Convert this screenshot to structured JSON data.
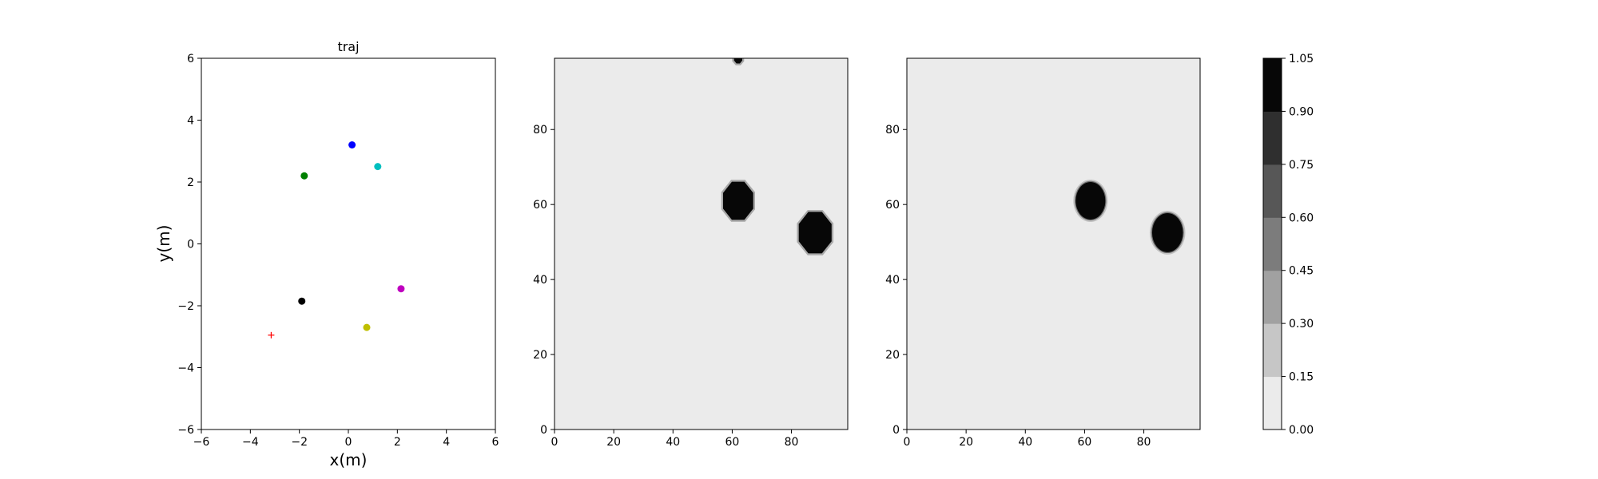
{
  "chart_data": [
    {
      "type": "scatter",
      "title": "traj",
      "xlabel": "x(m)",
      "ylabel": "y(m)",
      "xlim": [
        -6,
        6
      ],
      "ylim": [
        -6,
        6
      ],
      "xticks": [
        -6,
        -4,
        -2,
        0,
        2,
        4,
        6
      ],
      "yticks": [
        -6,
        -4,
        -2,
        0,
        2,
        4,
        6
      ],
      "grid": false,
      "points": [
        {
          "x": 0.15,
          "y": 3.2,
          "color": "#0000ff",
          "marker": "circle"
        },
        {
          "x": 1.2,
          "y": 2.5,
          "color": "#00bfbf",
          "marker": "circle"
        },
        {
          "x": -1.8,
          "y": 2.2,
          "color": "#008000",
          "marker": "circle"
        },
        {
          "x": 2.15,
          "y": -1.45,
          "color": "#bf00bf",
          "marker": "circle"
        },
        {
          "x": -1.9,
          "y": -1.85,
          "color": "#000000",
          "marker": "circle"
        },
        {
          "x": 0.75,
          "y": -2.7,
          "color": "#bfbf00",
          "marker": "circle"
        },
        {
          "x": -3.15,
          "y": -2.95,
          "color": "#ff0000",
          "marker": "plus"
        }
      ]
    },
    {
      "type": "heatmap",
      "xlim": [
        0,
        99
      ],
      "ylim": [
        0,
        99
      ],
      "xticks": [
        0,
        20,
        40,
        60,
        80
      ],
      "yticks": [
        0,
        20,
        40,
        60,
        80
      ],
      "background_value": 0.0,
      "blobs": [
        {
          "cx": 62,
          "cy": 61,
          "r": 5.5,
          "value": 1.0,
          "shape": "octagon"
        },
        {
          "cx": 88,
          "cy": 52.5,
          "r": 6,
          "value": 1.0,
          "shape": "octagon"
        },
        {
          "cx": 62,
          "cy": 99,
          "r": 1.5,
          "value": 1.0,
          "shape": "octagon"
        }
      ]
    },
    {
      "type": "heatmap",
      "xlim": [
        0,
        99
      ],
      "ylim": [
        0,
        99
      ],
      "xticks": [
        0,
        20,
        40,
        60,
        80
      ],
      "yticks": [
        0,
        20,
        40,
        60,
        80
      ],
      "background_value": 0.0,
      "blobs": [
        {
          "cx": 62,
          "cy": 61,
          "r": 5,
          "value": 1.0,
          "shape": "ellipse"
        },
        {
          "cx": 88,
          "cy": 52.5,
          "r": 5.2,
          "value": 1.0,
          "shape": "ellipse"
        }
      ]
    }
  ],
  "colorbar": {
    "levels": [
      "0.00",
      "0.15",
      "0.30",
      "0.45",
      "0.60",
      "0.75",
      "0.90",
      "1.05"
    ],
    "band_colors": [
      "#ebebeb",
      "#c6c6c6",
      "#a1a1a1",
      "#7c7c7c",
      "#575757",
      "#2f2f2f",
      "#070707"
    ]
  }
}
